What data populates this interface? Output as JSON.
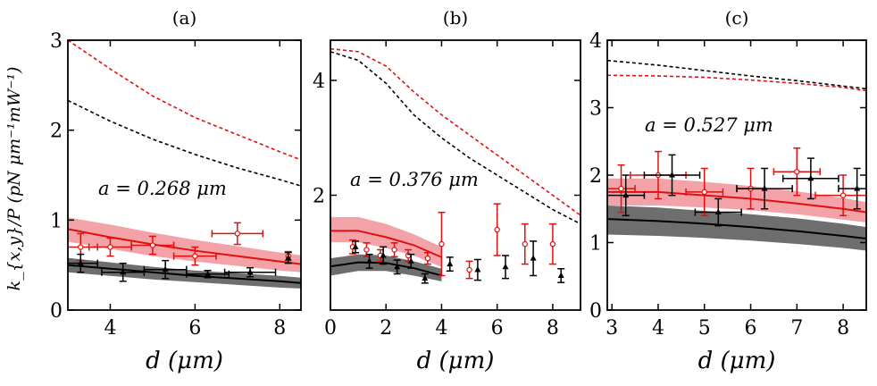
{
  "figure": {
    "ylabel": "k_{x,y}/P (pN μm⁻¹mW⁻¹)"
  },
  "colors": {
    "red": "#e01010",
    "red_band": "#f3a3a8",
    "black": "#000000",
    "gray_band": "#6e6e6e"
  },
  "chart_data": [
    {
      "type": "scatter",
      "title": "(a)",
      "xlabel": "d (μm)",
      "ylabel": "k_{x,y}/P (pN μm⁻¹mW⁻¹)",
      "annotation": "a = 0.268 μm",
      "xlim": [
        3,
        8.5
      ],
      "ylim": [
        0,
        3
      ],
      "xticks": [
        "4",
        "6",
        "8"
      ],
      "yticks": [
        "0",
        "1",
        "2",
        "3"
      ],
      "grid": false,
      "series": [
        {
          "kind": "dashed",
          "color": "red",
          "x": [
            3,
            4,
            5,
            6,
            7,
            8,
            8.5
          ],
          "y": [
            3.0,
            2.68,
            2.38,
            2.14,
            1.95,
            1.76,
            1.67
          ]
        },
        {
          "kind": "dashed",
          "color": "black",
          "x": [
            3,
            4,
            5,
            6,
            7,
            8,
            8.5
          ],
          "y": [
            2.33,
            2.1,
            1.9,
            1.73,
            1.58,
            1.45,
            1.38
          ]
        },
        {
          "kind": "band",
          "color": "red",
          "x": [
            3,
            4,
            5,
            6,
            7,
            8,
            8.5
          ],
          "lower": [
            0.76,
            0.68,
            0.6,
            0.54,
            0.49,
            0.44,
            0.42
          ],
          "upper": [
            1.03,
            0.95,
            0.86,
            0.78,
            0.71,
            0.64,
            0.61
          ]
        },
        {
          "kind": "line",
          "color": "red",
          "x": [
            3,
            4,
            5,
            6,
            7,
            8,
            8.5
          ],
          "y": [
            0.9,
            0.81,
            0.73,
            0.66,
            0.6,
            0.54,
            0.51
          ]
        },
        {
          "kind": "band",
          "color": "gray",
          "x": [
            3,
            4,
            5,
            6,
            7,
            8,
            8.5
          ],
          "lower": [
            0.42,
            0.38,
            0.34,
            0.31,
            0.28,
            0.25,
            0.24
          ],
          "upper": [
            0.58,
            0.53,
            0.48,
            0.44,
            0.41,
            0.38,
            0.36
          ]
        },
        {
          "kind": "line",
          "color": "black",
          "x": [
            3,
            4,
            5,
            6,
            7,
            8,
            8.5
          ],
          "y": [
            0.5,
            0.46,
            0.42,
            0.38,
            0.35,
            0.32,
            0.3
          ]
        },
        {
          "kind": "points",
          "color": "red",
          "marker": "circle",
          "points": [
            {
              "x": 3.3,
              "y": 0.7,
              "xerr": 0.4,
              "yerr": 0.15
            },
            {
              "x": 4.0,
              "y": 0.7,
              "xerr": 0.5,
              "yerr": 0.1
            },
            {
              "x": 5.0,
              "y": 0.72,
              "xerr": 0.5,
              "yerr": 0.1
            },
            {
              "x": 6.0,
              "y": 0.6,
              "xerr": 0.5,
              "yerr": 0.1
            },
            {
              "x": 7.0,
              "y": 0.85,
              "xerr": 0.6,
              "yerr": 0.12
            },
            {
              "x": 8.2,
              "y": 0.6,
              "xerr": 0.0,
              "yerr": 0.05
            }
          ]
        },
        {
          "kind": "points",
          "color": "black",
          "marker": "triangle",
          "points": [
            {
              "x": 3.3,
              "y": 0.52,
              "xerr": 0.4,
              "yerr": 0.1
            },
            {
              "x": 4.3,
              "y": 0.42,
              "xerr": 0.5,
              "yerr": 0.1
            },
            {
              "x": 5.3,
              "y": 0.45,
              "xerr": 0.5,
              "yerr": 0.1
            },
            {
              "x": 6.3,
              "y": 0.4,
              "xerr": 0.5,
              "yerr": 0.04
            },
            {
              "x": 7.3,
              "y": 0.42,
              "xerr": 0.6,
              "yerr": 0.05
            },
            {
              "x": 8.2,
              "y": 0.58,
              "xerr": 0.0,
              "yerr": 0.06
            }
          ]
        }
      ]
    },
    {
      "type": "scatter",
      "title": "(b)",
      "xlabel": "d (μm)",
      "ylabel": "",
      "annotation": "a = 0.376 μm",
      "xlim": [
        0,
        9
      ],
      "ylim": [
        0,
        4.7
      ],
      "xticks": [
        "0",
        "2",
        "4",
        "6",
        "8"
      ],
      "yticks": [
        "2",
        "4"
      ],
      "grid": false,
      "series": [
        {
          "kind": "dashed",
          "color": "red",
          "x": [
            0,
            1,
            2,
            3,
            4,
            5,
            6,
            7,
            8,
            9
          ],
          "y": [
            4.55,
            4.5,
            4.25,
            3.8,
            3.4,
            3.05,
            2.7,
            2.35,
            2.0,
            1.65
          ]
        },
        {
          "kind": "dashed",
          "color": "black",
          "x": [
            0,
            1,
            2,
            3,
            4,
            5,
            6,
            7,
            8,
            9
          ],
          "y": [
            4.5,
            4.35,
            3.95,
            3.4,
            3.0,
            2.65,
            2.35,
            2.05,
            1.75,
            1.5
          ]
        },
        {
          "kind": "band",
          "color": "red",
          "x": [
            0,
            1,
            2,
            3,
            4
          ],
          "lower": [
            1.18,
            1.18,
            1.08,
            0.95,
            0.75
          ],
          "upper": [
            1.62,
            1.62,
            1.5,
            1.32,
            1.1
          ]
        },
        {
          "kind": "line",
          "color": "red",
          "x": [
            0,
            1,
            2,
            3,
            4
          ],
          "y": [
            1.38,
            1.38,
            1.27,
            1.13,
            0.92
          ]
        },
        {
          "kind": "band",
          "color": "gray",
          "x": [
            0,
            1,
            2,
            3,
            4
          ],
          "lower": [
            0.6,
            0.68,
            0.68,
            0.6,
            0.5
          ],
          "upper": [
            0.9,
            0.97,
            0.95,
            0.85,
            0.72
          ]
        },
        {
          "kind": "line",
          "color": "black",
          "x": [
            0,
            1,
            2,
            3,
            4
          ],
          "y": [
            0.76,
            0.83,
            0.82,
            0.73,
            0.6
          ]
        },
        {
          "kind": "points",
          "color": "red",
          "marker": "circle",
          "points": [
            {
              "x": 0.8,
              "y": 1.1,
              "xerr": 0,
              "yerr": 0.12
            },
            {
              "x": 1.3,
              "y": 1.05,
              "xerr": 0,
              "yerr": 0.12
            },
            {
              "x": 1.8,
              "y": 0.95,
              "xerr": 0,
              "yerr": 0.1
            },
            {
              "x": 2.3,
              "y": 1.05,
              "xerr": 0,
              "yerr": 0.12
            },
            {
              "x": 2.8,
              "y": 0.95,
              "xerr": 0,
              "yerr": 0.1
            },
            {
              "x": 3.5,
              "y": 0.9,
              "xerr": 0,
              "yerr": 0.1
            },
            {
              "x": 4.0,
              "y": 1.15,
              "xerr": 0,
              "yerr": 0.55
            },
            {
              "x": 5.0,
              "y": 0.7,
              "xerr": 0,
              "yerr": 0.15
            },
            {
              "x": 6.0,
              "y": 1.4,
              "xerr": 0,
              "yerr": 0.45
            },
            {
              "x": 7.0,
              "y": 1.15,
              "xerr": 0,
              "yerr": 0.35
            },
            {
              "x": 8.0,
              "y": 1.15,
              "xerr": 0,
              "yerr": 0.35
            }
          ]
        },
        {
          "kind": "points",
          "color": "black",
          "marker": "triangle",
          "points": [
            {
              "x": 0.9,
              "y": 1.1,
              "xerr": 0,
              "yerr": 0.1
            },
            {
              "x": 1.4,
              "y": 0.85,
              "xerr": 0,
              "yerr": 0.12
            },
            {
              "x": 1.9,
              "y": 0.95,
              "xerr": 0,
              "yerr": 0.15
            },
            {
              "x": 2.4,
              "y": 0.75,
              "xerr": 0,
              "yerr": 0.12
            },
            {
              "x": 2.9,
              "y": 0.85,
              "xerr": 0,
              "yerr": 0.12
            },
            {
              "x": 3.4,
              "y": 0.55,
              "xerr": 0,
              "yerr": 0.08
            },
            {
              "x": 4.3,
              "y": 0.8,
              "xerr": 0,
              "yerr": 0.12
            },
            {
              "x": 5.3,
              "y": 0.7,
              "xerr": 0,
              "yerr": 0.18
            },
            {
              "x": 6.3,
              "y": 0.75,
              "xerr": 0,
              "yerr": 0.2
            },
            {
              "x": 7.3,
              "y": 0.9,
              "xerr": 0,
              "yerr": 0.3
            },
            {
              "x": 8.3,
              "y": 0.6,
              "xerr": 0,
              "yerr": 0.12
            }
          ]
        }
      ]
    },
    {
      "type": "scatter",
      "title": "(c)",
      "xlabel": "d (μm)",
      "ylabel": "",
      "annotation": "a = 0.527 μm",
      "xlim": [
        2.9,
        8.5
      ],
      "ylim": [
        0,
        4
      ],
      "xticks": [
        "3",
        "4",
        "5",
        "6",
        "7",
        "8"
      ],
      "yticks": [
        "0",
        "1",
        "2",
        "3",
        "4"
      ],
      "grid": false,
      "series": [
        {
          "kind": "dashed",
          "color": "black",
          "x": [
            2.9,
            4,
            5,
            6,
            7,
            8,
            8.5
          ],
          "y": [
            3.7,
            3.63,
            3.55,
            3.47,
            3.4,
            3.32,
            3.28
          ]
        },
        {
          "kind": "dashed",
          "color": "red",
          "x": [
            2.9,
            4,
            5,
            6,
            7,
            8,
            8.5
          ],
          "y": [
            3.48,
            3.47,
            3.45,
            3.41,
            3.36,
            3.3,
            3.25
          ]
        },
        {
          "kind": "band",
          "color": "red",
          "x": [
            2.9,
            4,
            5,
            6,
            7,
            8,
            8.5
          ],
          "lower": [
            1.55,
            1.55,
            1.52,
            1.48,
            1.42,
            1.34,
            1.3
          ],
          "upper": [
            1.95,
            1.95,
            1.9,
            1.84,
            1.76,
            1.66,
            1.6
          ]
        },
        {
          "kind": "line",
          "color": "red",
          "x": [
            2.9,
            4,
            5,
            6,
            7,
            8,
            8.5
          ],
          "y": [
            1.75,
            1.75,
            1.7,
            1.65,
            1.58,
            1.5,
            1.45
          ]
        },
        {
          "kind": "band",
          "color": "gray",
          "x": [
            2.9,
            4,
            5,
            6,
            7,
            8,
            8.5
          ],
          "lower": [
            1.12,
            1.1,
            1.07,
            1.03,
            0.98,
            0.92,
            0.88
          ],
          "upper": [
            1.55,
            1.52,
            1.47,
            1.42,
            1.36,
            1.28,
            1.23
          ]
        },
        {
          "kind": "line",
          "color": "black",
          "x": [
            2.9,
            4,
            5,
            6,
            7,
            8,
            8.5
          ],
          "y": [
            1.35,
            1.32,
            1.28,
            1.23,
            1.17,
            1.1,
            1.06
          ]
        },
        {
          "kind": "points",
          "color": "red",
          "marker": "circle",
          "points": [
            {
              "x": 3.2,
              "y": 1.8,
              "xerr": 0.3,
              "yerr": 0.35
            },
            {
              "x": 4.0,
              "y": 2.0,
              "xerr": 0.6,
              "yerr": 0.35
            },
            {
              "x": 5.0,
              "y": 1.75,
              "xerr": 0.4,
              "yerr": 0.35
            },
            {
              "x": 6.0,
              "y": 1.8,
              "xerr": 0.3,
              "yerr": 0.3
            },
            {
              "x": 7.0,
              "y": 2.05,
              "xerr": 0.5,
              "yerr": 0.35
            },
            {
              "x": 8.0,
              "y": 1.7,
              "xerr": 0.6,
              "yerr": 0.3
            }
          ]
        },
        {
          "kind": "points",
          "color": "black",
          "marker": "triangle",
          "points": [
            {
              "x": 3.3,
              "y": 1.7,
              "xerr": 0.4,
              "yerr": 0.3
            },
            {
              "x": 4.3,
              "y": 2.0,
              "xerr": 0.6,
              "yerr": 0.3
            },
            {
              "x": 5.3,
              "y": 1.45,
              "xerr": 0.5,
              "yerr": 0.2
            },
            {
              "x": 6.3,
              "y": 1.8,
              "xerr": 0.6,
              "yerr": 0.3
            },
            {
              "x": 7.3,
              "y": 1.95,
              "xerr": 0.6,
              "yerr": 0.3
            },
            {
              "x": 8.3,
              "y": 1.8,
              "xerr": 0.4,
              "yerr": 0.3
            }
          ]
        }
      ]
    }
  ]
}
